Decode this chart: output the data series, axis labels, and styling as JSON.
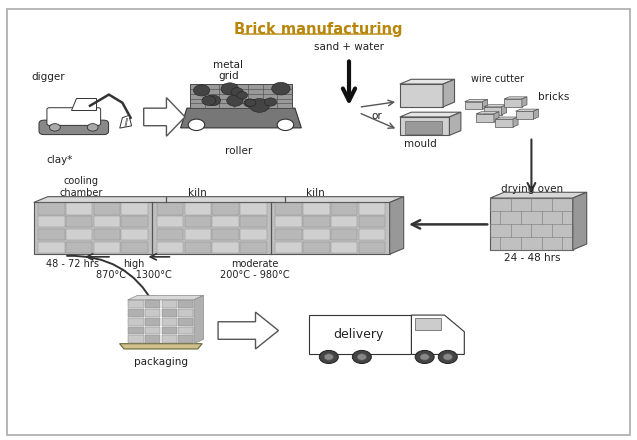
{
  "title": "Brick manufacturing",
  "title_color": "#b8860b",
  "background_color": "#f0f0f0",
  "border_color": "#aaaaaa",
  "text_color": "#222222",
  "label_digger": "digger",
  "label_clay": "clay*",
  "label_metal_grid": "metal\ngrid",
  "label_roller": "roller",
  "label_sand_water": "sand + water",
  "label_wire_cutter": "wire cutter",
  "label_bricks": "bricks",
  "label_or": "or",
  "label_mould": "mould",
  "label_drying_oven": "drying oven",
  "label_drying_time": "24 - 48 hrs",
  "label_cooling": "cooling\nchamber",
  "label_kiln": "kiln",
  "label_time_48_72": "48 - 72 hrs",
  "label_high": "high\n870°C - 1300°C",
  "label_moderate": "moderate\n200°C - 980°C",
  "label_packaging": "packaging",
  "label_delivery": "delivery"
}
